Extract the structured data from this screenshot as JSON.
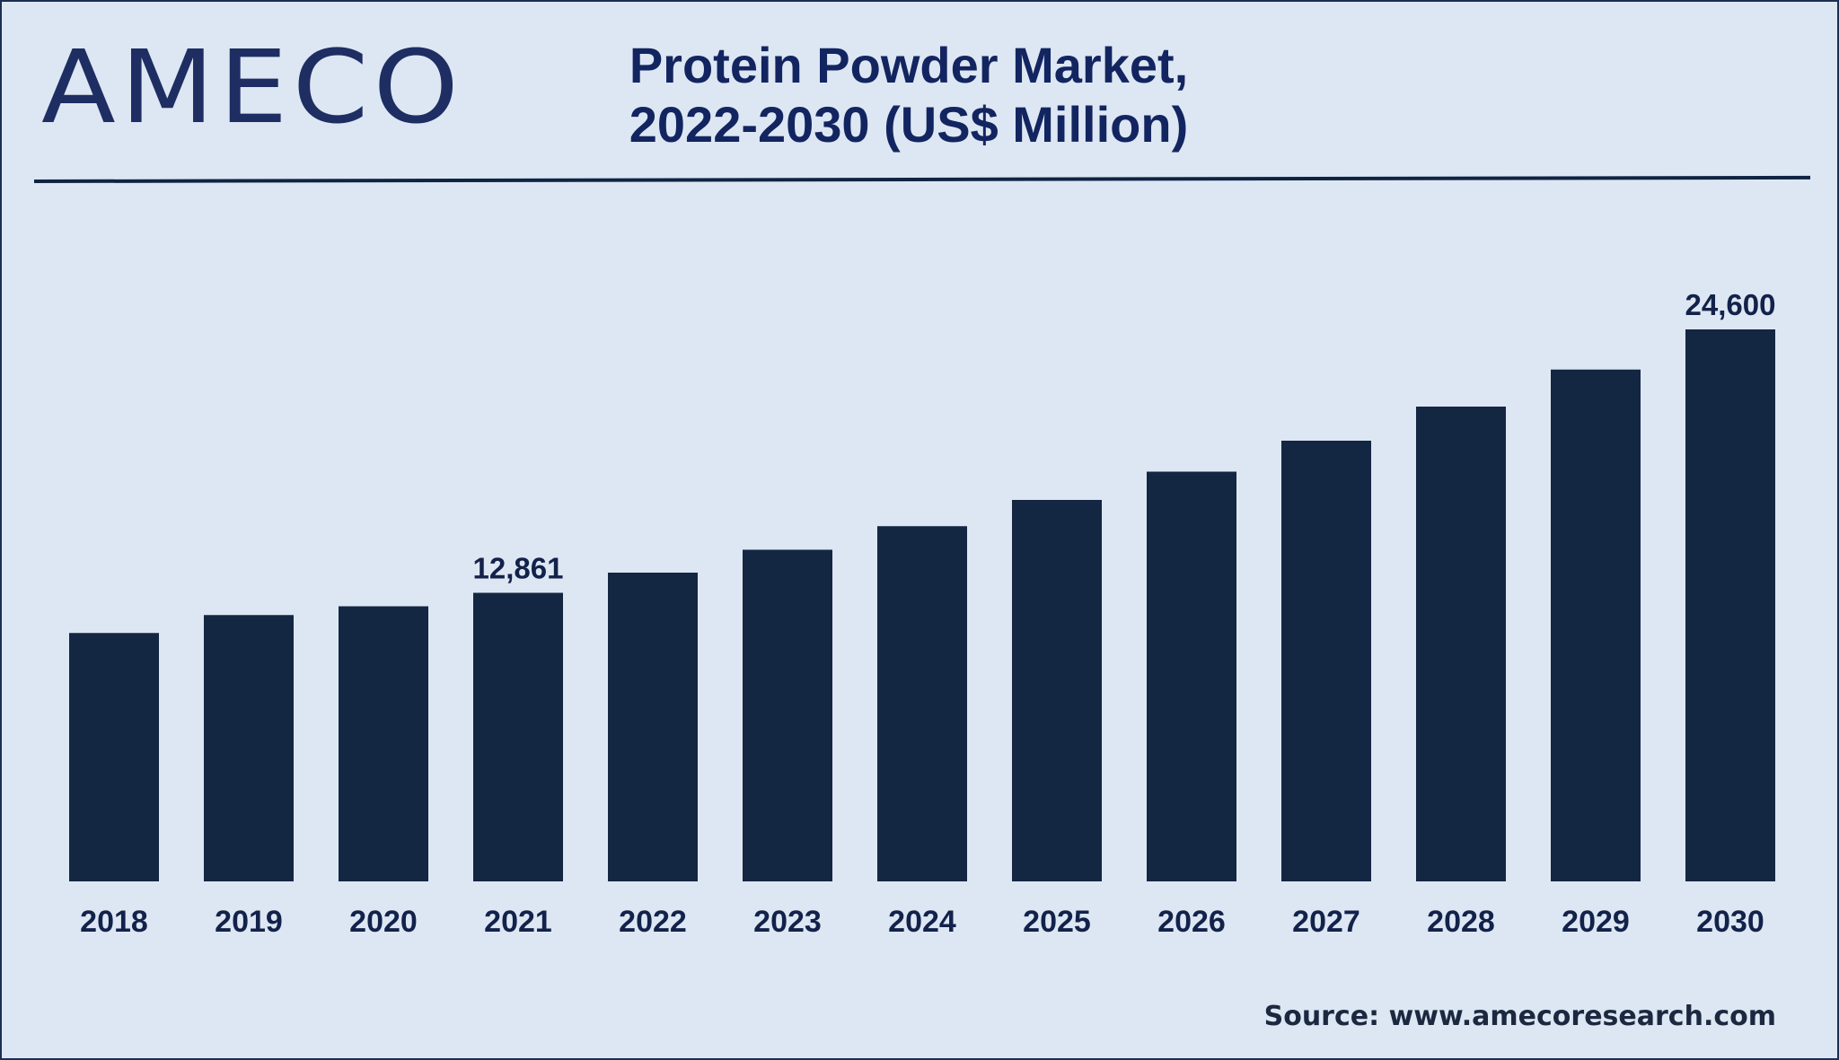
{
  "brand": {
    "logo_text": "AMECO"
  },
  "chart_data": {
    "type": "bar",
    "title_lines": [
      "Protein Powder Market,",
      "2022-2030 (US$ Million)"
    ],
    "categories": [
      "2018",
      "2019",
      "2020",
      "2021",
      "2022",
      "2023",
      "2024",
      "2025",
      "2026",
      "2027",
      "2028",
      "2029",
      "2030"
    ],
    "values": [
      11070,
      11870,
      12260,
      12861,
      13760,
      14780,
      15830,
      17000,
      18260,
      19640,
      21160,
      22810,
      24600
    ],
    "data_labels": [
      {
        "category": "2021",
        "text": "12,861"
      },
      {
        "category": "2030",
        "text": "24,600"
      }
    ],
    "xlabel": "",
    "ylabel": "",
    "ylim": [
      0,
      24600
    ],
    "grid": false,
    "bar_color": "#132642"
  },
  "footer": {
    "source": "Source: www.amecoresearch.com"
  }
}
